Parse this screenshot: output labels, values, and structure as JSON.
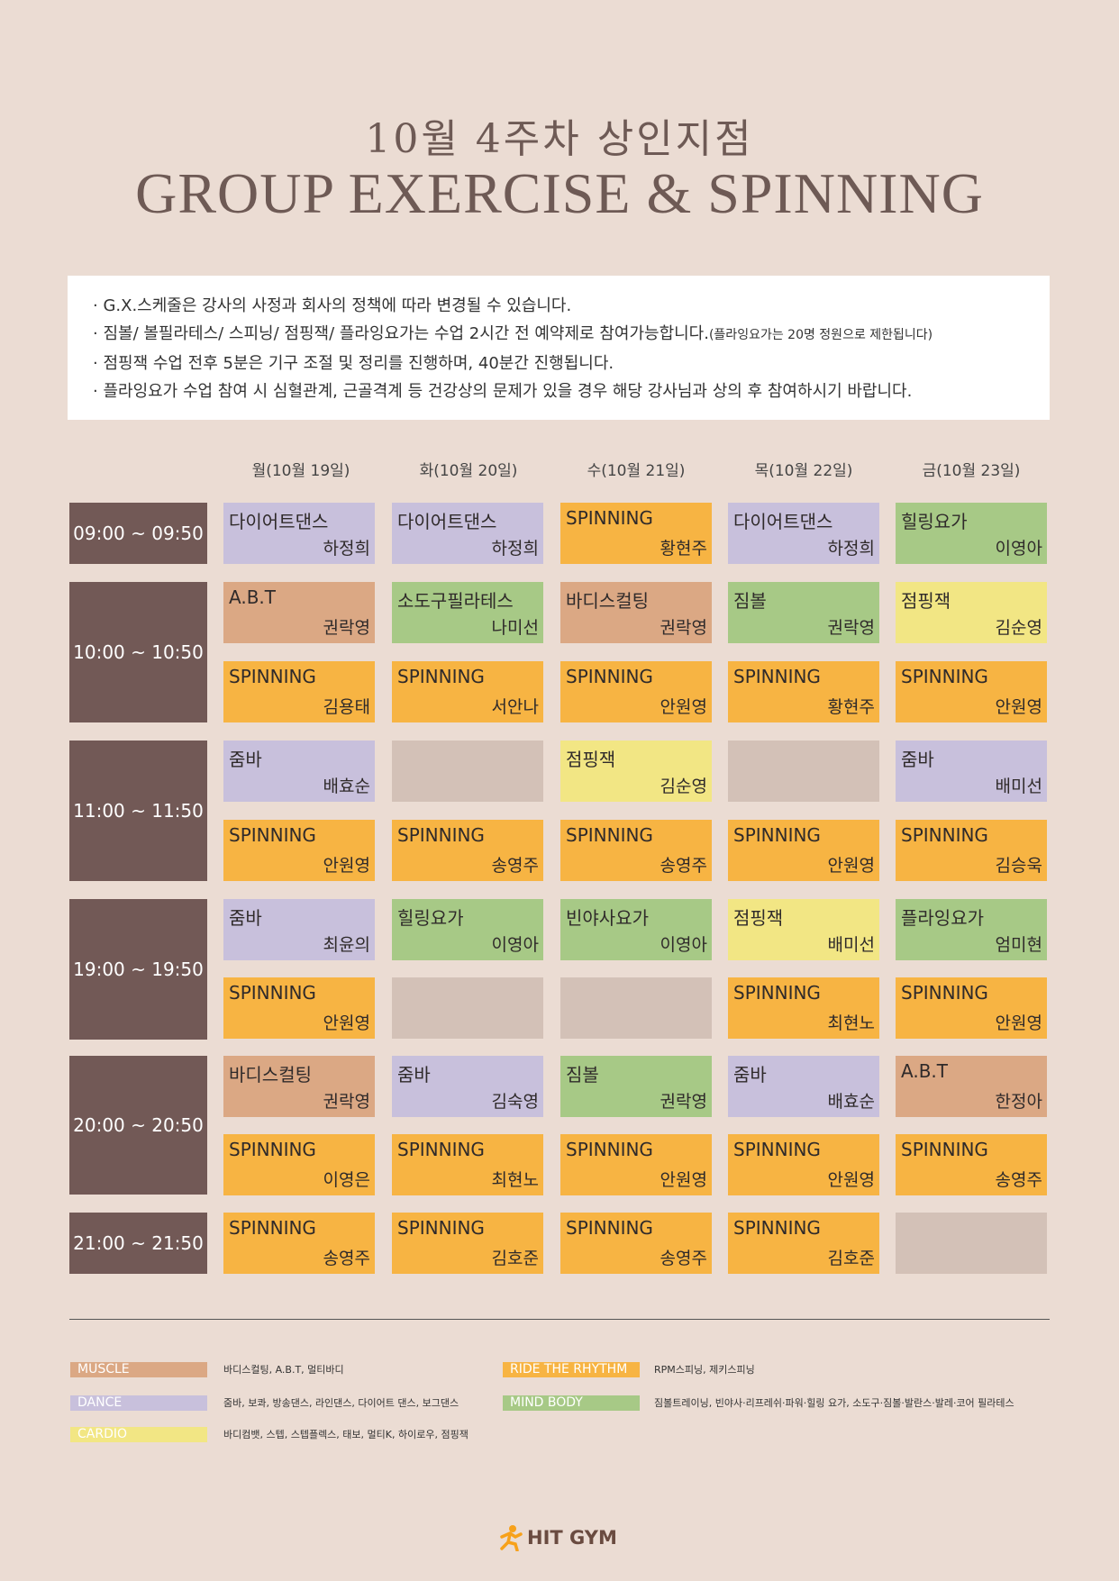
{
  "title_line1": "10월 4주차 상인지점",
  "title_line2": "GROUP EXERCISE & SPINNING",
  "notices": [
    "· G.X.스케줄은 강사의 사정과 회사의 정책에 따라 변경될 수 있습니다.",
    "· 짐볼/ 볼필라테스/ 스피닝/ 점핑잭/ 플라잉요가는 수업 2시간 전 예약제로 참여가능합니다.",
    "(플라잉요가는 20명 정원으로 제한됩니다)",
    "· 점핑잭 수업 전후 5분은 기구 조절 및 정리를 진행하며, 40분간 진행됩니다.",
    "· 플라잉요가 수업 참여 시 심혈관계, 근골격계 등 건강상의 문제가 있을 경우 해당 강사님과 상의 후 참여하시기 바랍니다."
  ],
  "days": [
    "월(10월 19일)",
    "화(10월 20일)",
    "수(10월 21일)",
    "목(10월 22일)",
    "금(10월 23일)"
  ],
  "times": [
    "09:00 ~ 09:50",
    "10:00 ~ 10:50",
    "11:00 ~ 11:50",
    "19:00 ~ 19:50",
    "20:00 ~ 20:50",
    "21:00 ~ 21:50"
  ],
  "schedule": [
    [
      {
        "name": "다이어트댄스",
        "instructor": "하정희",
        "cat": "dance"
      },
      {
        "name": "다이어트댄스",
        "instructor": "하정희",
        "cat": "dance"
      },
      {
        "name": "SPINNING",
        "instructor": "황현주",
        "cat": "ride"
      },
      {
        "name": "다이어트댄스",
        "instructor": "하정희",
        "cat": "dance"
      },
      {
        "name": "힐링요가",
        "instructor": "이영아",
        "cat": "mind"
      }
    ],
    [
      {
        "name": "A.B.T",
        "instructor": "권락영",
        "cat": "muscle"
      },
      {
        "name": "소도구필라테스",
        "instructor": "나미선",
        "cat": "mind"
      },
      {
        "name": "바디스컬팅",
        "instructor": "권락영",
        "cat": "muscle"
      },
      {
        "name": "짐볼",
        "instructor": "권락영",
        "cat": "mind"
      },
      {
        "name": "점핑잭",
        "instructor": "김순영",
        "cat": "cardio"
      }
    ],
    [
      {
        "name": "SPINNING",
        "instructor": "김용태",
        "cat": "ride"
      },
      {
        "name": "SPINNING",
        "instructor": "서안나",
        "cat": "ride"
      },
      {
        "name": "SPINNING",
        "instructor": "안원영",
        "cat": "ride"
      },
      {
        "name": "SPINNING",
        "instructor": "황현주",
        "cat": "ride"
      },
      {
        "name": "SPINNING",
        "instructor": "안원영",
        "cat": "ride"
      }
    ],
    [
      {
        "name": "줌바",
        "instructor": "배효순",
        "cat": "dance"
      },
      {
        "name": "",
        "instructor": "",
        "cat": "empty"
      },
      {
        "name": "점핑잭",
        "instructor": "김순영",
        "cat": "cardio"
      },
      {
        "name": "",
        "instructor": "",
        "cat": "empty"
      },
      {
        "name": "줌바",
        "instructor": "배미선",
        "cat": "dance"
      }
    ],
    [
      {
        "name": "SPINNING",
        "instructor": "안원영",
        "cat": "ride"
      },
      {
        "name": "SPINNING",
        "instructor": "송영주",
        "cat": "ride"
      },
      {
        "name": "SPINNING",
        "instructor": "송영주",
        "cat": "ride"
      },
      {
        "name": "SPINNING",
        "instructor": "안원영",
        "cat": "ride"
      },
      {
        "name": "SPINNING",
        "instructor": "김승욱",
        "cat": "ride"
      }
    ],
    [
      {
        "name": "줌바",
        "instructor": "최윤의",
        "cat": "dance"
      },
      {
        "name": "힐링요가",
        "instructor": "이영아",
        "cat": "mind"
      },
      {
        "name": "빈야사요가",
        "instructor": "이영아",
        "cat": "mind"
      },
      {
        "name": "점핑잭",
        "instructor": "배미선",
        "cat": "cardio"
      },
      {
        "name": "플라잉요가",
        "instructor": "엄미현",
        "cat": "mind"
      }
    ],
    [
      {
        "name": "SPINNING",
        "instructor": "안원영",
        "cat": "ride"
      },
      {
        "name": "",
        "instructor": "",
        "cat": "empty"
      },
      {
        "name": "",
        "instructor": "",
        "cat": "empty"
      },
      {
        "name": "SPINNING",
        "instructor": "최현노",
        "cat": "ride"
      },
      {
        "name": "SPINNING",
        "instructor": "안원영",
        "cat": "ride"
      }
    ],
    [
      {
        "name": "바디스컬팅",
        "instructor": "권락영",
        "cat": "muscle"
      },
      {
        "name": "줌바",
        "instructor": "김숙영",
        "cat": "dance"
      },
      {
        "name": "짐볼",
        "instructor": "권락영",
        "cat": "mind"
      },
      {
        "name": "줌바",
        "instructor": "배효순",
        "cat": "dance"
      },
      {
        "name": "A.B.T",
        "instructor": "한정아",
        "cat": "muscle"
      }
    ],
    [
      {
        "name": "SPINNING",
        "instructor": "이영은",
        "cat": "ride"
      },
      {
        "name": "SPINNING",
        "instructor": "최현노",
        "cat": "ride"
      },
      {
        "name": "SPINNING",
        "instructor": "안원영",
        "cat": "ride"
      },
      {
        "name": "SPINNING",
        "instructor": "안원영",
        "cat": "ride"
      },
      {
        "name": "SPINNING",
        "instructor": "송영주",
        "cat": "ride"
      }
    ],
    [
      {
        "name": "SPINNING",
        "instructor": "송영주",
        "cat": "ride"
      },
      {
        "name": "SPINNING",
        "instructor": "김호준",
        "cat": "ride"
      },
      {
        "name": "SPINNING",
        "instructor": "송영주",
        "cat": "ride"
      },
      {
        "name": "SPINNING",
        "instructor": "김호준",
        "cat": "ride"
      },
      {
        "name": "",
        "instructor": "",
        "cat": "empty"
      }
    ]
  ],
  "legend": [
    {
      "label": "MUSCLE",
      "desc": "바디스컬팅, A.B.T, 멀티바디",
      "color": "#dba884"
    },
    {
      "label": "DANCE",
      "desc": "줌바, 보콰, 방송댄스, 라인댄스, 다이어트 댄스, 보그댄스",
      "color": "#c8c0dc"
    },
    {
      "label": "CARDIO",
      "desc": "바디컴뱃, 스텝, 스텝플렉스, 태보, 멀티K, 하이로우, 점핑잭",
      "color": "#f2e684"
    },
    {
      "label": "RIDE THE RHYTHM",
      "desc": "RPM스피닝, 제키스피닝",
      "color": "#f7b443"
    },
    {
      "label": "MIND BODY",
      "desc": "짐볼트레이닝, 빈야사·리프레쉬·파워·힐링 요가, 소도구·짐볼·발란스·발레·코어 필라테스",
      "color": "#a7c986"
    }
  ],
  "colors": {
    "muscle": "#dba884",
    "dance": "#c8c0dc",
    "cardio": "#f2e684",
    "ride": "#f7b443",
    "mind": "#a7c986",
    "empty": "#d3c1b7",
    "time_bg": "#725956",
    "page_bg": "#ebdcd3"
  },
  "logo_text": "HIT GYM"
}
